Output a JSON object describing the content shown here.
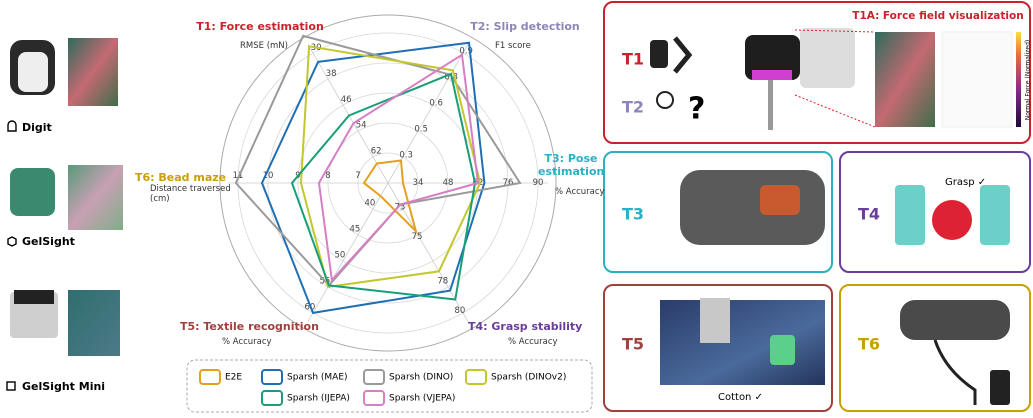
{
  "chart_data": {
    "type": "radar",
    "axes": [
      {
        "title": "T1: Force estimation",
        "subtitle": "RMSE (mN)",
        "range": [
          62,
          30
        ],
        "ticks": [
          62,
          54,
          46,
          38,
          30
        ]
      },
      {
        "title": "T2: Slip detection",
        "subtitle": "F1 score",
        "range": [
          0.3,
          0.9
        ],
        "ticks": [
          0.3,
          {
            "value": 0.45,
            "label": "0.5"
          },
          0.6,
          {
            "value": 0.75,
            "label": "0.8"
          },
          0.9
        ]
      },
      {
        "title": "T3: Pose estimation",
        "subtitle": "% Accuracy",
        "range": [
          34,
          90
        ],
        "ticks": [
          34,
          48,
          62,
          76,
          90
        ]
      },
      {
        "title": "T4: Grasp stability",
        "subtitle": "% Accuracy",
        "range": [
          73,
          80
        ],
        "ticks": [
          73,
          75,
          78,
          80
        ]
      },
      {
        "title": "T5: Textile recognition",
        "subtitle": "% Accuracy",
        "range": [
          40,
          60
        ],
        "ticks": [
          40,
          45,
          50,
          55,
          60
        ]
      },
      {
        "title": "T6: Bead maze",
        "subtitle": "Distance traversed (cm)",
        "range": [
          7,
          11
        ],
        "ticks": [
          7,
          8,
          9,
          10,
          11
        ]
      }
    ],
    "series": [
      {
        "name": "E2E",
        "color": "#e69f1c",
        "values": [
          64,
          0.28,
          27,
          74.5,
          37.5,
          6.8
        ]
      },
      {
        "name": "Sparsh (MAE)",
        "color": "#1f6fb4",
        "values": [
          32.7,
          0.96,
          65,
          78.5,
          60,
          10.2
        ]
      },
      {
        "name": "Sparsh (DINO)",
        "color": "#9a9a9a",
        "values": [
          24.7,
          0.775,
          81.6,
          72.7,
          54.7,
          11.07
        ]
      },
      {
        "name": "Sparsh (DINOv2)",
        "color": "#c3c72c",
        "values": [
          27.9,
          0.8,
          63,
          77.2,
          55,
          8.9
        ]
      },
      {
        "name": "Sparsh (IJEPA)",
        "color": "#1a9e77",
        "values": [
          49.2,
          0.78,
          60.6,
          79.1,
          54.7,
          9.2
        ]
      },
      {
        "name": "Sparsh (VJEPA)",
        "color": "#d67fc4",
        "values": [
          51.6,
          0.89,
          62,
          72.7,
          53.7,
          8.3
        ]
      }
    ]
  },
  "sensors": [
    "Digit",
    "GelSight",
    "GelSight Mini"
  ],
  "panels": {
    "t1": "T1",
    "t2": "T2",
    "t1a": "T1A: Force field visualization",
    "colorbar": "Normal Force (Normalized)",
    "t3": "T3",
    "t4": "T4",
    "grasp": "Grasp ✓",
    "t5": "T5",
    "cotton": "Cotton ✓",
    "t6": "T6"
  }
}
